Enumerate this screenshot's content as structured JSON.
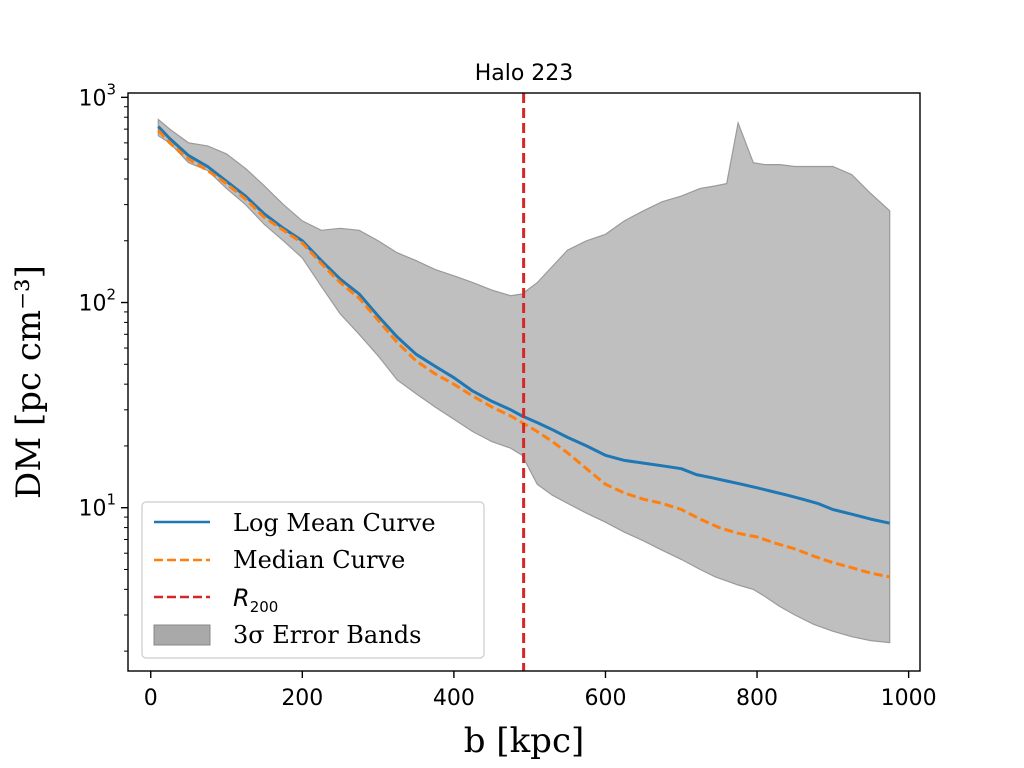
{
  "chart_data": {
    "type": "line",
    "title": "Halo 223",
    "xlabel": "b [kpc]",
    "ylabel": "DM [pc cm⁻³]",
    "xlim": [
      -30,
      1015
    ],
    "ylim": [
      1.6,
      1050
    ],
    "yscale": "log",
    "grid": false,
    "legend_position": "lower-left",
    "xticks": [
      0,
      200,
      400,
      600,
      800,
      1000
    ],
    "xtick_labels": [
      "0",
      "200",
      "400",
      "600",
      "800",
      "1000"
    ],
    "yticks": [
      10,
      100,
      1000
    ],
    "ytick_labels": [
      {
        "base": "10",
        "exp": "1"
      },
      {
        "base": "10",
        "exp": "2"
      },
      {
        "base": "10",
        "exp": "3"
      }
    ],
    "series": [
      {
        "name": "Log Mean Curve",
        "color": "#1f77b4",
        "style": "solid",
        "x": [
          10,
          25,
          50,
          75,
          100,
          125,
          150,
          175,
          200,
          225,
          250,
          275,
          300,
          325,
          350,
          375,
          400,
          425,
          450,
          475,
          490,
          510,
          530,
          550,
          575,
          600,
          625,
          650,
          675,
          700,
          720,
          740,
          760,
          780,
          800,
          820,
          840,
          860,
          880,
          900,
          925,
          950,
          975
        ],
        "y": [
          720,
          630,
          520,
          460,
          390,
          330,
          270,
          230,
          200,
          160,
          130,
          110,
          86,
          68,
          56,
          49,
          43,
          37,
          33,
          30,
          28,
          26,
          24,
          22,
          20,
          18,
          17,
          16.5,
          16,
          15.5,
          14.5,
          14,
          13.5,
          13,
          12.5,
          12,
          11.5,
          11,
          10.5,
          9.8,
          9.3,
          8.8,
          8.4
        ]
      },
      {
        "name": "Median Curve",
        "color": "#ff7f0e",
        "style": "dashed",
        "x": [
          10,
          25,
          50,
          75,
          100,
          125,
          150,
          175,
          200,
          225,
          250,
          275,
          300,
          325,
          350,
          375,
          400,
          425,
          450,
          475,
          490,
          510,
          530,
          550,
          575,
          600,
          625,
          650,
          675,
          700,
          725,
          750,
          775,
          800,
          825,
          850,
          875,
          900,
          925,
          950,
          975
        ],
        "y": [
          690,
          600,
          500,
          440,
          380,
          320,
          260,
          225,
          195,
          155,
          125,
          105,
          82,
          64,
          52,
          45,
          40,
          35,
          31,
          28,
          26,
          23.5,
          21,
          18.5,
          15.5,
          13,
          11.8,
          11,
          10.5,
          9.8,
          8.8,
          8,
          7.5,
          7.2,
          6.7,
          6.3,
          5.8,
          5.4,
          5.1,
          4.8,
          4.6
        ]
      },
      {
        "name": "R_200",
        "color": "#d62728",
        "style": "dashed",
        "x_vertical": 492
      }
    ],
    "band": {
      "name": "3σ Error Bands",
      "color": "#a9a9a9",
      "x": [
        10,
        25,
        50,
        75,
        100,
        125,
        150,
        175,
        200,
        225,
        250,
        275,
        300,
        325,
        350,
        375,
        400,
        425,
        450,
        475,
        490,
        510,
        530,
        550,
        575,
        600,
        625,
        650,
        675,
        700,
        725,
        745,
        760,
        775,
        795,
        810,
        830,
        850,
        875,
        900,
        925,
        950,
        975
      ],
      "upper": [
        780,
        700,
        600,
        580,
        530,
        450,
        370,
        300,
        250,
        225,
        230,
        225,
        200,
        175,
        160,
        145,
        135,
        125,
        115,
        108,
        110,
        125,
        150,
        180,
        200,
        215,
        250,
        280,
        310,
        330,
        360,
        370,
        380,
        750,
        480,
        470,
        470,
        460,
        460,
        460,
        420,
        340,
        280
      ],
      "lower": [
        650,
        600,
        480,
        440,
        360,
        300,
        240,
        200,
        165,
        120,
        88,
        70,
        55,
        42,
        36,
        31,
        27,
        23.5,
        21,
        19.5,
        18,
        13,
        11.5,
        10.5,
        9.4,
        8.5,
        7.6,
        6.9,
        6.2,
        5.6,
        5.0,
        4.6,
        4.4,
        4.2,
        4.0,
        3.7,
        3.3,
        3.0,
        2.7,
        2.5,
        2.35,
        2.25,
        2.2
      ]
    },
    "legend": [
      {
        "label": "Log Mean Curve",
        "kind": "line",
        "color": "#1f77b4"
      },
      {
        "label": "Median Curve",
        "kind": "dashed",
        "color": "#ff7f0e"
      },
      {
        "label_base": "R",
        "label_sub": "200",
        "kind": "dashed",
        "color": "#d62728"
      },
      {
        "label": "3σ Error Bands",
        "kind": "patch",
        "color": "#a9a9a9"
      }
    ]
  }
}
